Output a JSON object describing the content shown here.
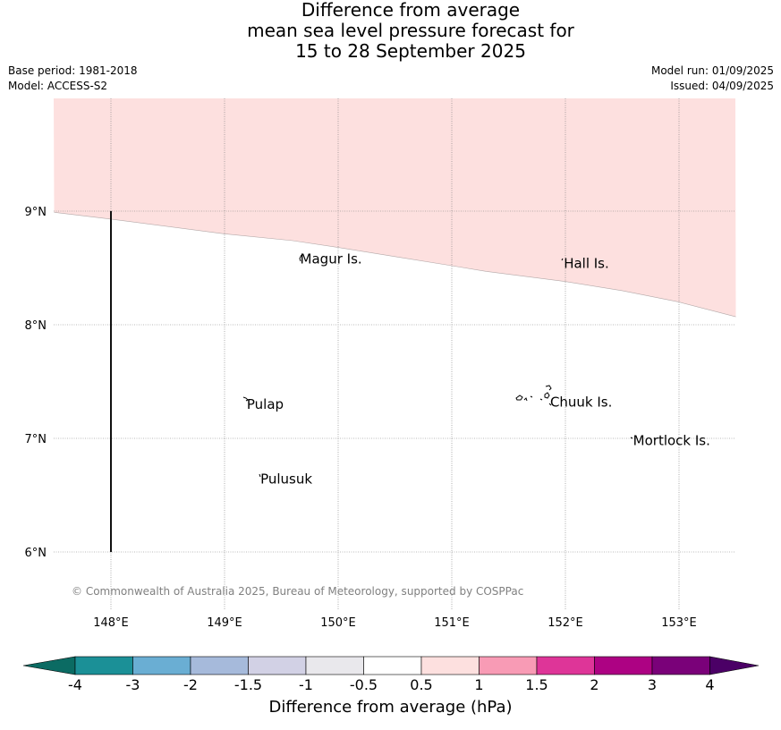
{
  "title": {
    "line1": "Difference from average",
    "line2": "mean sea level pressure forecast for",
    "line3": "15 to 28 September 2025"
  },
  "meta": {
    "base_period": "Base period: 1981-2018",
    "model": "Model: ACCESS-S2",
    "model_run": "Model run: 01/09/2025",
    "issued": "Issued: 04/09/2025"
  },
  "map": {
    "lon_range": [
      147.5,
      153.5
    ],
    "lat_range": [
      5.5,
      10.0
    ],
    "lon_ticks": [
      {
        "value": 148,
        "label": "148°E"
      },
      {
        "value": 149,
        "label": "149°E"
      },
      {
        "value": 150,
        "label": "150°E"
      },
      {
        "value": 151,
        "label": "151°E"
      },
      {
        "value": 152,
        "label": "152°E"
      },
      {
        "value": 153,
        "label": "153°E"
      }
    ],
    "lat_ticks": [
      {
        "value": 9,
        "label": "9°N"
      },
      {
        "value": 8,
        "label": "8°N"
      },
      {
        "value": 7,
        "label": "7°N"
      },
      {
        "value": 6,
        "label": "6°N"
      }
    ],
    "grid": true,
    "shaded_region": {
      "category": "0.5 to 1",
      "color": "#fde0df",
      "boundary": [
        {
          "lon": 147.5,
          "lat": 8.99
        },
        {
          "lon": 148.0,
          "lat": 8.93
        },
        {
          "lon": 149.0,
          "lat": 8.8
        },
        {
          "lon": 149.6,
          "lat": 8.74
        },
        {
          "lon": 150.0,
          "lat": 8.68
        },
        {
          "lon": 150.5,
          "lat": 8.6
        },
        {
          "lon": 151.0,
          "lat": 8.52
        },
        {
          "lon": 151.3,
          "lat": 8.47
        },
        {
          "lon": 152.0,
          "lat": 8.38
        },
        {
          "lon": 152.5,
          "lat": 8.3
        },
        {
          "lon": 153.0,
          "lat": 8.2
        },
        {
          "lon": 153.5,
          "lat": 8.07
        }
      ]
    },
    "boundary_line": {
      "lon": 148.0,
      "lat_from": 6.0,
      "lat_to": 9.0
    },
    "places": [
      {
        "name": "Magur Is.",
        "lon": 149.65,
        "lat": 8.58
      },
      {
        "name": "Hall Is.",
        "lon": 151.97,
        "lat": 8.54
      },
      {
        "name": "Pulap",
        "lon": 149.18,
        "lat": 7.3
      },
      {
        "name": "Chuuk Is.",
        "lon": 151.85,
        "lat": 7.32
      },
      {
        "name": "Mortlock Is.",
        "lon": 152.58,
        "lat": 6.98
      },
      {
        "name": "Pulusuk",
        "lon": 149.3,
        "lat": 6.64
      }
    ],
    "copyright": "© Commonwealth of Australia 2025, Bureau of Meteorology, supported by COSPPac"
  },
  "colorbar": {
    "title": "Difference from average (hPa)",
    "under_color": "#0b6b63",
    "over_color": "#4b0066",
    "bins": [
      {
        "from": -4,
        "to": -3,
        "color": "#1b9097"
      },
      {
        "from": -3,
        "to": -2,
        "color": "#6aaed3"
      },
      {
        "from": -2,
        "to": -1.5,
        "color": "#a6badb"
      },
      {
        "from": -1.5,
        "to": -1,
        "color": "#d2d1e5"
      },
      {
        "from": -1,
        "to": -0.5,
        "color": "#e9e8ec"
      },
      {
        "from": -0.5,
        "to": 0.5,
        "color": "#ffffff"
      },
      {
        "from": 0.5,
        "to": 1,
        "color": "#fde0df"
      },
      {
        "from": 1,
        "to": 1.5,
        "color": "#f89bb5"
      },
      {
        "from": 1.5,
        "to": 2,
        "color": "#de3598"
      },
      {
        "from": 2,
        "to": 3,
        "color": "#ad0283"
      },
      {
        "from": 3,
        "to": 4,
        "color": "#7a0179"
      }
    ],
    "tick_labels": [
      "-4",
      "-3",
      "-2",
      "-1.5",
      "-1",
      "-0.5",
      "0.5",
      "1",
      "1.5",
      "2",
      "3",
      "4"
    ]
  }
}
